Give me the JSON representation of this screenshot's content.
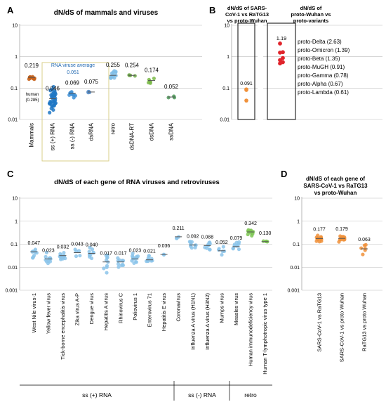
{
  "colors": {
    "mammal": "#c8621a",
    "ssplus": "#1f77c4",
    "ssminus": "#3d8fd6",
    "dsrna": "#5b8fc9",
    "retro": "#7fbde8",
    "dsdnart": "#6fa84a",
    "dsdna": "#7ab848",
    "ssdna": "#4f9a5a",
    "virusC": "#8cc4ea",
    "retroC": "#7cc552",
    "red": "#e0242b",
    "orange": "#f0913a",
    "avgText": "#1f67b0",
    "avgBox": "#d8cf8a"
  },
  "chart_data": [
    {
      "id": "A",
      "type": "scatter",
      "title": "dN/dS of mammals and viruses",
      "ylim": [
        0.01,
        10
      ],
      "yscale": "log",
      "yticks": [
        "10",
        "1",
        "0.1",
        "0.01"
      ],
      "categories": [
        "Mammals",
        "ss (+) RNA",
        "ss (-) RNA",
        "dsRNA",
        "retro",
        "dsDNA-RT",
        "dsDNA",
        "ssDNA"
      ],
      "values": [
        0.219,
        0.046,
        0.069,
        0.075,
        0.255,
        0.254,
        0.174,
        0.052
      ],
      "value_labels": [
        "0.219",
        "0.046",
        "0.069",
        "0.075",
        "0.255",
        "0.254",
        "0.174",
        "0.052"
      ],
      "annotations": {
        "avg_title": "RNA viruse average",
        "avg_value": "0.051",
        "human_label": "human",
        "human_value": "(0.285)"
      }
    },
    {
      "id": "B1",
      "type": "scatter",
      "title_lines": [
        "dN/dS of SARS-",
        "CoV-1 vs RaTG13",
        "vs proto-Wuhan"
      ],
      "ylim": [
        0.01,
        10
      ],
      "yscale": "log",
      "yticks": [
        "10",
        "1",
        "0.1",
        "0.01"
      ],
      "values": [
        0.091
      ],
      "value_labels": [
        "0.091"
      ]
    },
    {
      "id": "B2",
      "type": "scatter",
      "title_lines": [
        "dN/dS of",
        "proto-Wuhan vs",
        "proto-variants"
      ],
      "ylim": [
        0.01,
        10
      ],
      "yscale": "log",
      "value_labels": [
        "1.19"
      ],
      "legend": [
        {
          "name": "proto-Delta",
          "value": 2.63,
          "label": "proto-Delta (2.63)"
        },
        {
          "name": "proto-Omicron",
          "value": 1.39,
          "label": "proto-Omicron (1.39)"
        },
        {
          "name": "proto-Beta",
          "value": 1.35,
          "label": "proto-Beta (1.35)"
        },
        {
          "name": "proto-MuGH",
          "value": 0.91,
          "label": "proto-MuGH (0.91)"
        },
        {
          "name": "proto-Gamma",
          "value": 0.78,
          "label": "proto-Gamma (0.78)"
        },
        {
          "name": "proto-Alpha",
          "value": 0.67,
          "label": "proto-Alpha (0.67)"
        },
        {
          "name": "proto-Lambda",
          "value": 0.61,
          "label": "proto-Lambda (0.61)"
        }
      ]
    },
    {
      "id": "C",
      "type": "scatter",
      "title": "dN/dS of each gene of RNA viruses and retroviruses",
      "ylim": [
        0.001,
        10
      ],
      "yscale": "log",
      "yticks": [
        "10",
        "1",
        "0.1",
        "0.01",
        "0.001"
      ],
      "categories": [
        "West Nile virus-1",
        "Yellow fever virus",
        "Tick-borne encephalitis virus",
        "Zika virus A-P",
        "Dengue virus",
        "Hepatitis A virus",
        "Rhinovirus C",
        "Poliovirus 1",
        "Enterovirus 71",
        "Hepatitis E virus",
        "Coronavirus",
        "Influenza A virus (H1N1)",
        "Influenza A virus (H3N2)",
        "Mumps virus",
        "Measles virus",
        "Human immunodeficiency virus",
        "Human T-lymphotropic virus type 1"
      ],
      "values": [
        0.047,
        0.023,
        0.032,
        0.043,
        0.04,
        0.017,
        0.017,
        0.023,
        0.021,
        0.036,
        0.211,
        0.092,
        0.088,
        0.052,
        0.079,
        0.342,
        0.13
      ],
      "value_labels": [
        "0.047",
        "0.023",
        "0.032",
        "0.043",
        "0.040",
        "0.017",
        "0.017",
        "0.023",
        "0.021",
        "0.036",
        "0.211",
        "0.092",
        "0.088",
        "0.052",
        "0.079",
        "0.342",
        "0.130"
      ],
      "groups": [
        {
          "name": "ss (+) RNA",
          "from": 0,
          "to": 10
        },
        {
          "name": "ss (-) RNA",
          "from": 11,
          "to": 14
        },
        {
          "name": "retro",
          "from": 15,
          "to": 16
        }
      ]
    },
    {
      "id": "D",
      "type": "scatter",
      "title_lines": [
        "dN/dS of each gene of",
        "SARS-CoV-1 vs RaTG13",
        "vs proto-Wuhan"
      ],
      "ylim": [
        0.001,
        10
      ],
      "yscale": "log",
      "yticks": [
        "10",
        "1",
        "0.1",
        "0.01",
        "0.001"
      ],
      "categories": [
        "SARS-CoV-1 vs RaTG13",
        "SARS-CoV-1 vs proto Wuhan",
        "RaTG13 vs proto Wuhan"
      ],
      "values": [
        0.177,
        0.179,
        0.063
      ],
      "value_labels": [
        "0.177",
        "0.179",
        "0.063"
      ]
    }
  ],
  "panels": {
    "a": "A",
    "b": "B",
    "c": "C",
    "d": "D"
  }
}
